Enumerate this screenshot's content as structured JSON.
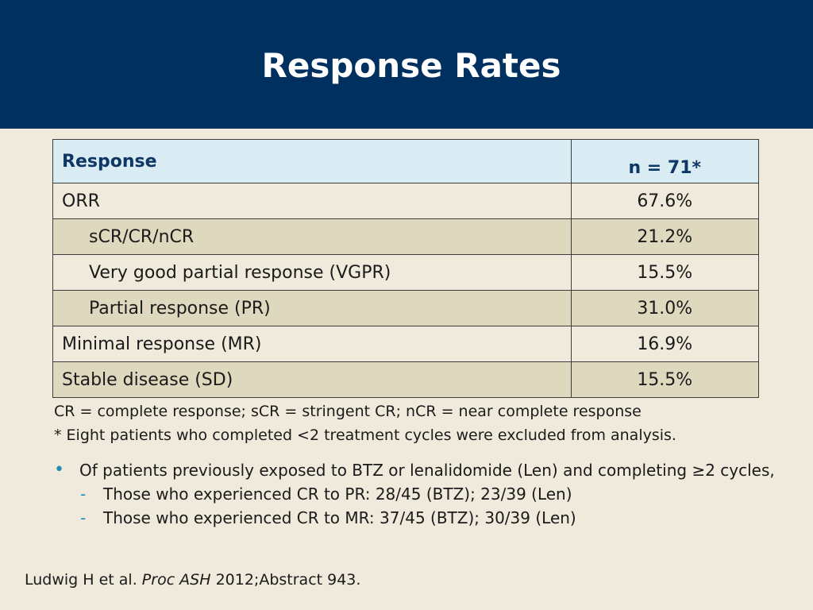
{
  "slide": {
    "title": "Response Rates"
  },
  "table": {
    "headers": [
      "Response",
      "n = 71*"
    ],
    "rows": [
      {
        "label": "ORR",
        "value": "67.6%"
      },
      {
        "label": "sCR/CR/nCR",
        "value": "21.2%"
      },
      {
        "label": "Very good partial response (VGPR)",
        "value": "15.5%"
      },
      {
        "label": "Partial response (PR)",
        "value": "31.0%"
      },
      {
        "label": "Minimal response (MR)",
        "value": "16.9%"
      },
      {
        "label": "Stable disease (SD)",
        "value": "15.5%"
      }
    ]
  },
  "footnotes": [
    "CR = complete response; sCR = stringent CR; nCR = near complete response",
    "* Eight patients who completed <2 treatment cycles were excluded from analysis."
  ],
  "bullets": {
    "main": "Of patients previously exposed to BTZ or lenalidomide (Len) and completing ≥2 cycles,",
    "subitems": [
      "Those who experienced CR to PR: 28/45 (BTZ); 23/39 (Len)",
      "Those who experienced CR to MR: 37/45 (BTZ); 30/39 (Len)"
    ],
    "bullet_glyph": "•",
    "sub_glyph": "-"
  },
  "citation": {
    "authors": "Ludwig H et al.",
    "journal": "Proc ASH",
    "details": "2012;Abstract 943."
  },
  "colors": {
    "header_band": "#003060",
    "background": "#efeadb",
    "table_header": "#d9ebf3",
    "table_shade": "#ded8be",
    "accent": "#1d8fb5"
  }
}
